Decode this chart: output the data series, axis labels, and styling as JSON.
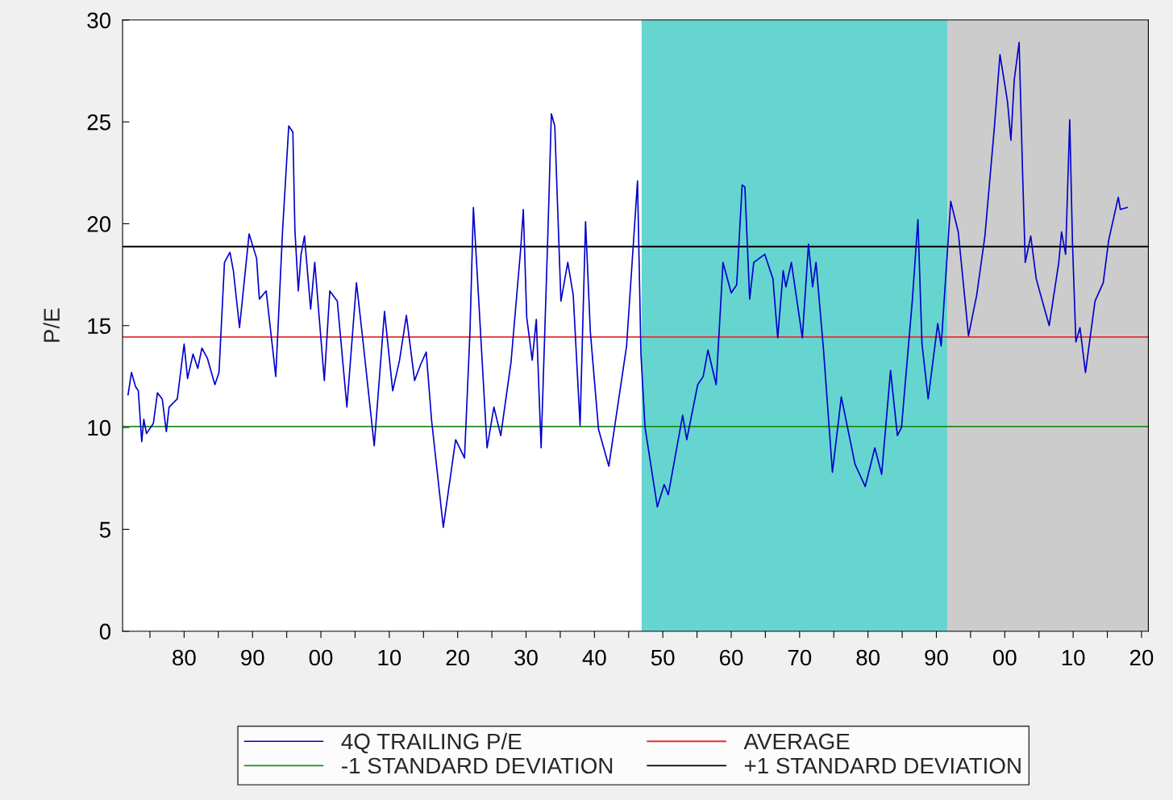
{
  "chart_data": {
    "type": "line",
    "ylabel": "P/E",
    "xlim": [
      1871,
      2021
    ],
    "ylim": [
      0,
      30
    ],
    "yticks": [
      0,
      5,
      10,
      15,
      20,
      25,
      30
    ],
    "xticks": [
      {
        "value": 1875,
        "label": null
      },
      {
        "value": 1880,
        "label": "80"
      },
      {
        "value": 1885,
        "label": null
      },
      {
        "value": 1890,
        "label": "90"
      },
      {
        "value": 1895,
        "label": null
      },
      {
        "value": 1900,
        "label": "00"
      },
      {
        "value": 1905,
        "label": null
      },
      {
        "value": 1910,
        "label": "10"
      },
      {
        "value": 1915,
        "label": null
      },
      {
        "value": 1920,
        "label": "20"
      },
      {
        "value": 1925,
        "label": null
      },
      {
        "value": 1930,
        "label": "30"
      },
      {
        "value": 1935,
        "label": null
      },
      {
        "value": 1940,
        "label": "40"
      },
      {
        "value": 1945,
        "label": null
      },
      {
        "value": 1950,
        "label": "50"
      },
      {
        "value": 1955,
        "label": null
      },
      {
        "value": 1960,
        "label": "60"
      },
      {
        "value": 1965,
        "label": null
      },
      {
        "value": 1970,
        "label": "70"
      },
      {
        "value": 1975,
        "label": null
      },
      {
        "value": 1980,
        "label": "80"
      },
      {
        "value": 1985,
        "label": null
      },
      {
        "value": 1990,
        "label": "90"
      },
      {
        "value": 1995,
        "label": null
      },
      {
        "value": 2000,
        "label": "00"
      },
      {
        "value": 2005,
        "label": null
      },
      {
        "value": 2010,
        "label": "10"
      },
      {
        "value": 2015,
        "label": null
      },
      {
        "value": 2020,
        "label": "20"
      }
    ],
    "grid": false,
    "legend": "bottom",
    "line_style": "solid",
    "marker": "none",
    "series": [
      {
        "name": "4Q TRAILING P/E",
        "color": "#0000cc",
        "x": [
          1871.8,
          1872.3,
          1872.9,
          1873.3,
          1873.8,
          1874.1,
          1874.5,
          1875.5,
          1876.1,
          1876.8,
          1877.4,
          1877.8,
          1879.0,
          1880.0,
          1880.5,
          1881.3,
          1882.0,
          1882.6,
          1883.4,
          1884.5,
          1885.1,
          1885.9,
          1886.7,
          1887.2,
          1888.1,
          1889.5,
          1890.6,
          1891.0,
          1892.0,
          1893.4,
          1894.4,
          1895.3,
          1895.9,
          1896.2,
          1896.7,
          1897.1,
          1897.6,
          1898.5,
          1899.1,
          1900.5,
          1901.3,
          1902.4,
          1903.8,
          1905.2,
          1906.2,
          1907.8,
          1909.3,
          1910.5,
          1911.5,
          1912.5,
          1913.7,
          1914.6,
          1915.4,
          1916.2,
          1917.9,
          1919.7,
          1921.0,
          1921.8,
          1922.3,
          1922.8,
          1924.3,
          1925.3,
          1926.3,
          1927.8,
          1929.2,
          1929.6,
          1930.1,
          1930.9,
          1931.5,
          1932.2,
          1933.2,
          1933.7,
          1934.2,
          1935.1,
          1936.1,
          1936.9,
          1937.9,
          1938.7,
          1939.4,
          1940.6,
          1942.1,
          1944.7,
          1946.3,
          1946.8,
          1947.4,
          1949.2,
          1950.2,
          1950.8,
          1952.9,
          1953.5,
          1955.1,
          1955.9,
          1956.6,
          1957.8,
          1958.8,
          1960.0,
          1960.8,
          1961.6,
          1962.0,
          1962.7,
          1963.3,
          1964.9,
          1966.1,
          1966.8,
          1967.6,
          1968.0,
          1968.8,
          1970.4,
          1971.3,
          1971.9,
          1972.4,
          1973.5,
          1974.8,
          1976.1,
          1978.1,
          1979.6,
          1981.0,
          1982.0,
          1983.3,
          1984.3,
          1984.9,
          1986.5,
          1987.3,
          1987.9,
          1988.8,
          1990.2,
          1990.7,
          1992.1,
          1993.2,
          1994.7,
          1995.9,
          1997.1,
          1998.5,
          1999.3,
          2000.4,
          2000.9,
          2001.4,
          2002.1,
          2002.6,
          2003.0,
          2003.8,
          2004.6,
          2005.5,
          2006.5,
          2007.9,
          2008.3,
          2008.9,
          2009.5,
          2009.9,
          2010.4,
          2011.0,
          2011.8,
          2013.2,
          2014.4,
          2015.2,
          2016.6,
          2016.9,
          2017.9
        ],
        "values": [
          11.6,
          12.7,
          12.0,
          11.8,
          9.3,
          10.4,
          9.7,
          10.2,
          11.7,
          11.4,
          9.8,
          11.0,
          11.4,
          14.1,
          12.4,
          13.6,
          12.9,
          13.9,
          13.4,
          12.1,
          12.7,
          18.1,
          18.6,
          17.7,
          14.9,
          19.5,
          18.3,
          16.3,
          16.7,
          12.5,
          19.7,
          24.8,
          24.5,
          19.7,
          16.7,
          18.5,
          19.4,
          15.8,
          18.1,
          12.3,
          16.7,
          16.2,
          11.0,
          17.1,
          14.1,
          9.1,
          15.7,
          11.8,
          13.3,
          15.5,
          12.3,
          13.1,
          13.7,
          10.3,
          5.1,
          9.4,
          8.5,
          14.7,
          20.8,
          17.9,
          9.0,
          11.0,
          9.6,
          13.2,
          18.7,
          20.7,
          15.4,
          13.3,
          15.3,
          9.0,
          19.6,
          25.4,
          24.8,
          16.2,
          18.1,
          16.5,
          10.1,
          20.1,
          14.7,
          9.9,
          8.1,
          14.0,
          22.1,
          13.6,
          10.0,
          6.1,
          7.2,
          6.7,
          10.6,
          9.4,
          12.1,
          12.5,
          13.8,
          12.1,
          18.1,
          16.6,
          17.0,
          21.9,
          21.8,
          16.3,
          18.1,
          18.5,
          17.3,
          14.4,
          17.7,
          16.9,
          18.1,
          14.4,
          19.0,
          16.9,
          18.1,
          13.8,
          7.8,
          11.5,
          8.2,
          7.1,
          9.0,
          7.7,
          12.8,
          9.6,
          10.0,
          16.3,
          20.2,
          14.1,
          11.4,
          15.1,
          14.0,
          21.1,
          19.6,
          14.5,
          16.5,
          19.4,
          24.8,
          28.3,
          26.0,
          24.1,
          27.1,
          28.9,
          22.6,
          18.1,
          19.4,
          17.3,
          16.2,
          15.0,
          18.1,
          19.6,
          18.5,
          25.1,
          19.1,
          14.2,
          14.9,
          12.7,
          16.2,
          17.1,
          19.2,
          21.3,
          20.7,
          20.8
        ]
      }
    ],
    "ref_lines": [
      {
        "axis": "y",
        "value": 14.44,
        "label": "AVERAGE",
        "color": "#e03030",
        "line_style": "solid"
      },
      {
        "axis": "y",
        "value": 10.05,
        "label": "-1 STANDARD DEVIATION",
        "color": "#208a20",
        "line_style": "solid"
      },
      {
        "axis": "y",
        "value": 18.88,
        "label": "+1 STANDARD DEVIATION",
        "color": "#000000",
        "line_style": "solid"
      }
    ],
    "bands": [
      {
        "axis": "x",
        "from": 1946.9,
        "to": 1991.6,
        "color": "#66d5d0"
      },
      {
        "axis": "x",
        "from": 1991.6,
        "to": 2021,
        "color": "#cccccc"
      }
    ]
  }
}
